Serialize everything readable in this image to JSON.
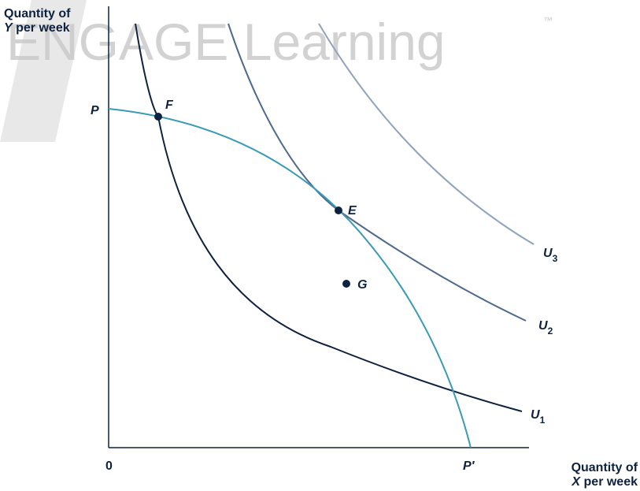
{
  "watermark": {
    "text": "ENGAGE Learning",
    "trademark": "™"
  },
  "y_axis": {
    "line1": "Quantity of",
    "variable": "Y",
    "line2": "per week"
  },
  "x_axis": {
    "line1": "Quantity of",
    "variable": "X",
    "line2": "per week"
  },
  "origin": "0",
  "frontier": {
    "start_label": "P",
    "end_label": "P′"
  },
  "points": [
    {
      "label": "F"
    },
    {
      "label": "E"
    },
    {
      "label": "G"
    }
  ],
  "curves": [
    {
      "letter": "U",
      "subscript": "1"
    },
    {
      "letter": "U",
      "subscript": "2"
    },
    {
      "letter": "U",
      "subscript": "3"
    }
  ]
}
